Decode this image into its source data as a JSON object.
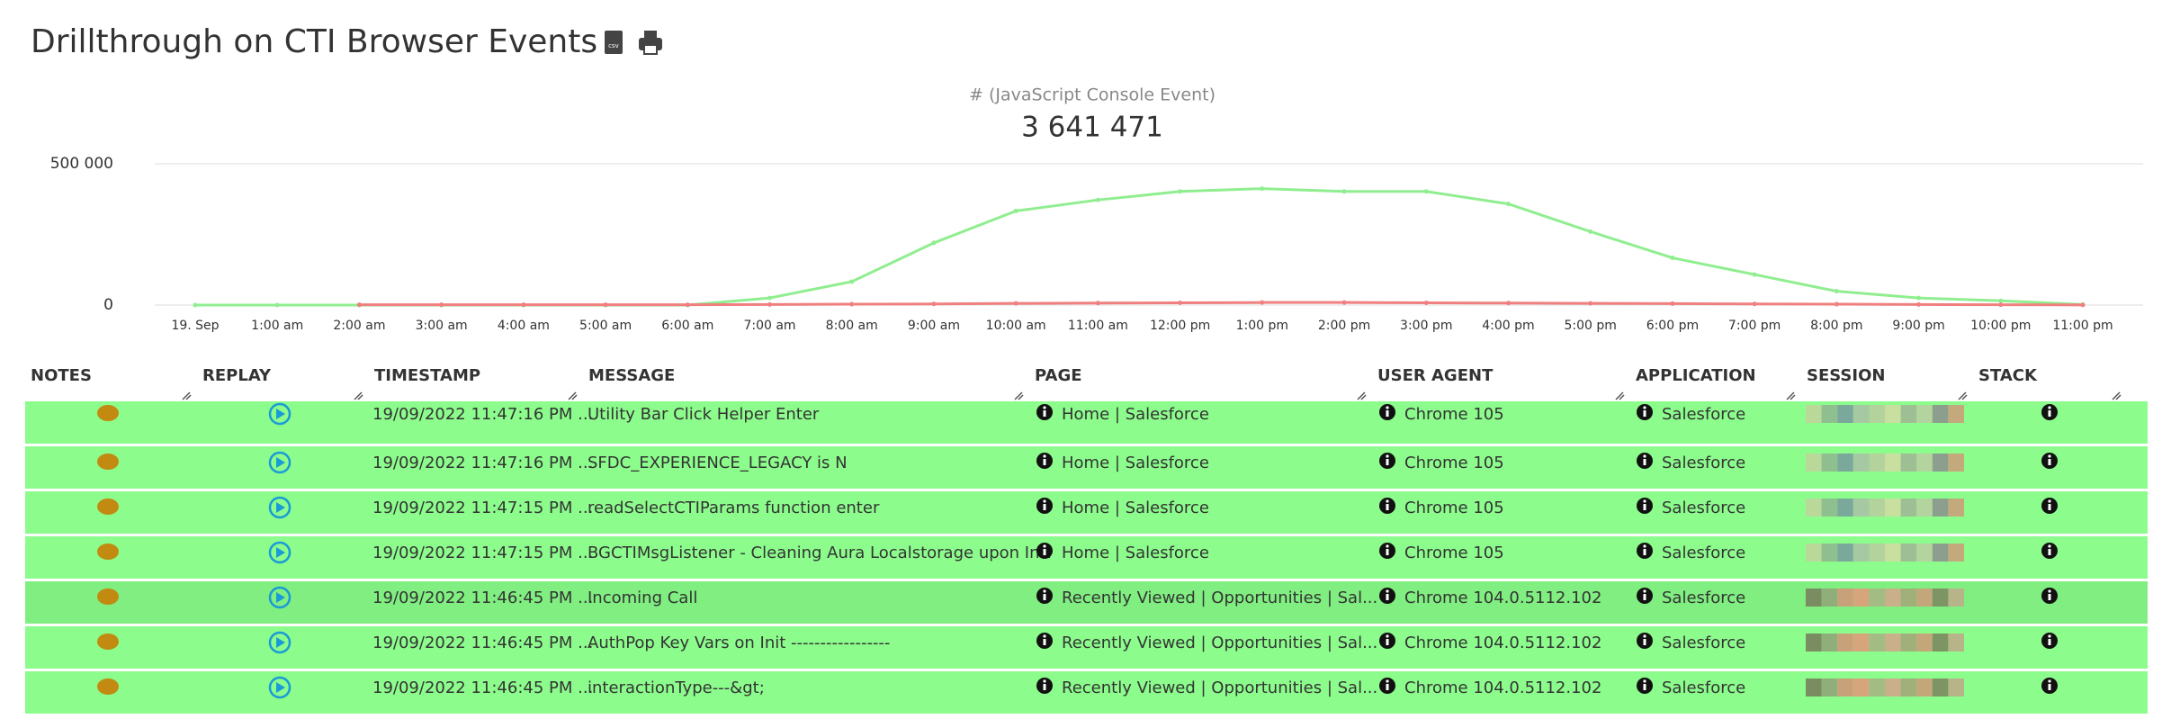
{
  "header": {
    "title": "Drillthrough on CTI Browser Events"
  },
  "chart_data": {
    "type": "line",
    "subtitle": "# (JavaScript Console Event)",
    "total": "3 641 471",
    "categories": [
      "19. Sep",
      "1:00 am",
      "2:00 am",
      "3:00 am",
      "4:00 am",
      "5:00 am",
      "6:00 am",
      "7:00 am",
      "8:00 am",
      "9:00 am",
      "10:00 am",
      "11:00 am",
      "12:00 pm",
      "1:00 pm",
      "2:00 pm",
      "3:00 pm",
      "4:00 pm",
      "5:00 pm",
      "6:00 pm",
      "7:00 pm",
      "8:00 pm",
      "9:00 pm",
      "10:00 pm",
      "11:00 pm"
    ],
    "series": [
      {
        "color": "#90ee90",
        "values": [
          0,
          0,
          0,
          0,
          0,
          0,
          0,
          25000,
          83000,
          220000,
          333000,
          372000,
          402000,
          412000,
          402000,
          402000,
          358000,
          260000,
          167000,
          108000,
          49000,
          25000,
          15000,
          2000
        ]
      },
      {
        "color": "#f08080",
        "values": [
          null,
          null,
          1000,
          1000,
          1000,
          1000,
          1000,
          2000,
          3000,
          4000,
          6000,
          7000,
          8000,
          9000,
          9000,
          8000,
          7000,
          6000,
          5000,
          4000,
          3000,
          2000,
          1000,
          500
        ]
      }
    ],
    "ylim": [
      0,
      500000
    ],
    "yticks": [
      0,
      {
        "value": 500000,
        "label": "500 000"
      }
    ],
    "grid": true
  },
  "table": {
    "columns": [
      "NOTES",
      "REPLAY",
      "TIMESTAMP",
      "MESSAGE",
      "PAGE",
      "USER AGENT",
      "APPLICATION",
      "SESSION",
      "STACK"
    ],
    "rows": [
      [
        "19/09/2022 11:47:16 PM ...",
        "Utility Bar Click Helper Enter",
        "Home | Salesforce",
        "Chrome 105",
        "Salesforce"
      ],
      [
        "19/09/2022 11:47:16 PM ...",
        "SFDC_EXPERIENCE_LEGACY is N",
        "Home | Salesforce",
        "Chrome 105",
        "Salesforce"
      ],
      [
        "19/09/2022 11:47:15 PM ...",
        "readSelectCTIParams function enter",
        "Home | Salesforce",
        "Chrome 105",
        "Salesforce"
      ],
      [
        "19/09/2022 11:47:15 PM ...",
        "BGCTIMsgListener - Cleaning Aura Localstorage upon Init",
        "Home | Salesforce",
        "Chrome 105",
        "Salesforce"
      ],
      [
        "19/09/2022 11:46:45 PM ...",
        "Incoming Call",
        "Recently Viewed | Opportunities | Sal...",
        "Chrome 104.0.5112.102",
        "Salesforce"
      ],
      [
        "19/09/2022 11:46:45 PM ...",
        "AuthPop Key Vars on Init -----------------",
        "Recently Viewed | Opportunities | Sal...",
        "Chrome 104.0.5112.102",
        "Salesforce"
      ],
      [
        "19/09/2022 11:46:45 PM ...",
        "interactionType---&gt;",
        "Recently Viewed | Opportunities | Sal...",
        "Chrome 104.0.5112.102",
        "Salesforce"
      ]
    ]
  }
}
